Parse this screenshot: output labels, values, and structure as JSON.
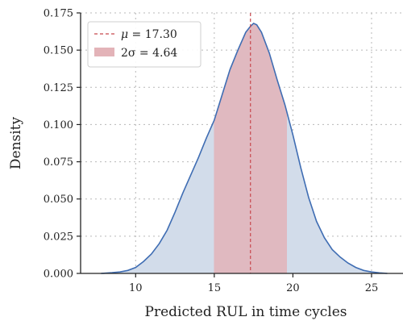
{
  "chart_data": {
    "type": "area",
    "title": "",
    "xlabel": "Predicted RUL in time cycles",
    "ylabel": "Density",
    "xlim": [
      6.5,
      27
    ],
    "ylim": [
      0,
      0.175
    ],
    "x_ticks": [
      10,
      15,
      20,
      25
    ],
    "y_ticks": [
      0.0,
      0.025,
      0.05,
      0.075,
      0.1,
      0.125,
      0.15,
      0.175
    ],
    "x_tick_labels": [
      "10",
      "15",
      "20",
      "25"
    ],
    "y_tick_labels": [
      "0.000",
      "0.025",
      "0.050",
      "0.075",
      "0.100",
      "0.125",
      "0.150",
      "0.175"
    ],
    "grid": true,
    "legend_position": "top-left",
    "mean": 17.3,
    "band": [
      14.98,
      19.62
    ],
    "legend": [
      {
        "symbol": "μ",
        "text": " = 17.30",
        "kind": "dashed-line",
        "color": "#c8474d"
      },
      {
        "symbol": "2σ",
        "text": " = 4.64",
        "kind": "patch",
        "color": "#e3b3b8"
      }
    ],
    "series": [
      {
        "kind": "kde",
        "line_color": "#3f6db3",
        "fill_color": "#d2dcea",
        "x": [
          7.8,
          8.5,
          9.0,
          9.5,
          10.0,
          10.5,
          11.0,
          11.5,
          12.0,
          12.5,
          13.0,
          13.5,
          14.0,
          14.5,
          15.0,
          15.5,
          16.0,
          16.5,
          17.0,
          17.3,
          17.5,
          17.7,
          18.0,
          18.5,
          19.0,
          19.5,
          20.0,
          20.5,
          21.0,
          21.5,
          22.0,
          22.5,
          23.0,
          23.5,
          24.0,
          24.5,
          25.0,
          25.5,
          26.0
        ],
        "y": [
          0.0,
          0.0005,
          0.001,
          0.002,
          0.004,
          0.008,
          0.013,
          0.02,
          0.029,
          0.041,
          0.054,
          0.066,
          0.078,
          0.091,
          0.103,
          0.12,
          0.137,
          0.15,
          0.162,
          0.166,
          0.168,
          0.167,
          0.162,
          0.148,
          0.13,
          0.113,
          0.093,
          0.071,
          0.051,
          0.035,
          0.024,
          0.016,
          0.011,
          0.007,
          0.004,
          0.002,
          0.001,
          0.0004,
          0.0
        ]
      }
    ]
  }
}
